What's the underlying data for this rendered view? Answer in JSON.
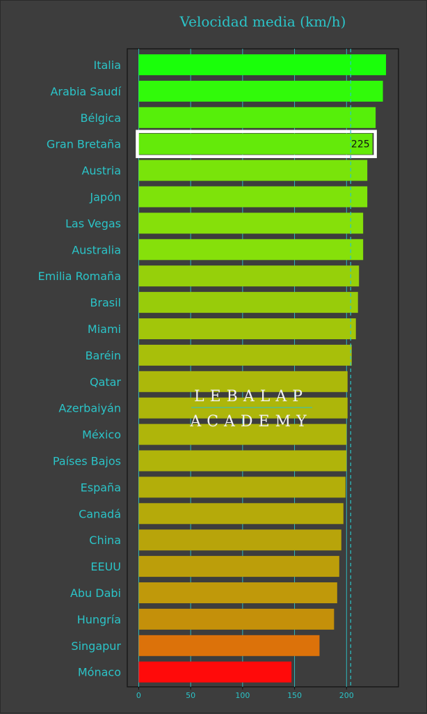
{
  "chart_data": {
    "type": "bar",
    "orientation": "horizontal",
    "title": "Velocidad media (km/h)",
    "xlabel": "",
    "ylabel": "",
    "xlim": [
      -11,
      250
    ],
    "xticks": [
      0,
      50,
      100,
      150,
      200
    ],
    "grid": true,
    "reference_line": 204,
    "categories": [
      "Italia",
      "Arabia Saudí",
      "Bélgica",
      "Gran Bretaña",
      "Austria",
      "Japón",
      "Las Vegas",
      "Australia",
      "Emilia Romaña",
      "Brasil",
      "Miami",
      "Baréin",
      "Qatar",
      "Azerbaiyán",
      "México",
      "Países Bajos",
      "España",
      "Canadá",
      "China",
      "EEUU",
      "Abu Dabi",
      "Hungría",
      "Singapur",
      "Mónaco"
    ],
    "values": [
      238,
      235,
      228,
      225,
      220,
      220,
      216,
      216,
      212,
      211,
      209,
      205,
      201,
      201,
      200,
      200,
      199,
      197,
      195,
      193,
      191,
      188,
      174,
      147
    ],
    "colors": [
      "#1aff0a",
      "#31fa0a",
      "#56ef0a",
      "#64ea0a",
      "#79e40a",
      "#7ee30a",
      "#86e00a",
      "#86e00a",
      "#96d00a",
      "#98cc0a",
      "#a2c60a",
      "#a8bf0a",
      "#acb80a",
      "#adb60a",
      "#afb50a",
      "#b0b40a",
      "#b3ae0a",
      "#b5aa0a",
      "#b8a40a",
      "#bc9e0a",
      "#c0990a",
      "#c4900a",
      "#dc720a",
      "#ff0a0a"
    ],
    "highlight_index": 3,
    "data_labels": [
      {
        "index": 3,
        "text": "225"
      }
    ]
  },
  "watermark": {
    "line1": "LEBALAP",
    "line2": "ACADEMY"
  },
  "colors": {
    "background": "#3d3d3d",
    "text": "#2bc4c8",
    "axis": "#111111",
    "highlight_box": "#ffffff"
  }
}
